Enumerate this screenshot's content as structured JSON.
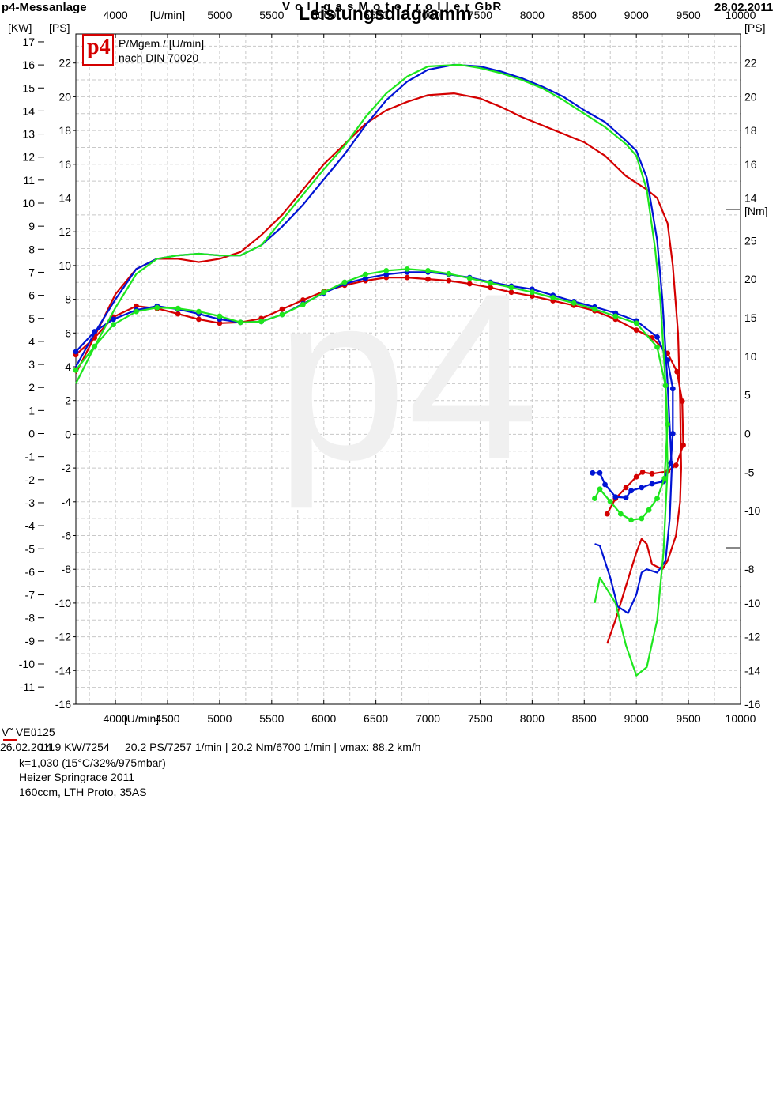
{
  "header": {
    "left": "p4-Messanlage",
    "center_top": "V o l l g a s  M o t o r r o l l e r  GbR",
    "title": "Leistungsdiagramm",
    "date": "28.02.2011"
  },
  "legend_box": {
    "logo": "p4",
    "line1": "P/Mgem / [U/min]",
    "line2": "nach DIN 70020"
  },
  "watermark": "p4",
  "run_label": {
    "vehicle": "V˜  VEü125",
    "date": "26.02.2011",
    "overlap": "14.9 KW/7254",
    "summary": "20.2 PS/7257 1/min  |  20.2 Nm/6700 1/min  |  vmax: 88.2 km/h",
    "line2": "k=1,030 (15°C/32%/975mbar)",
    "line3": "Heizer Springrace 2011",
    "line4": "160ccm, LTH Proto, 35AS"
  },
  "colors": {
    "red": "#d40000",
    "blue": "#0014d4",
    "green": "#1ee61e",
    "grid": "#c8c8c8"
  },
  "chart_data": {
    "type": "line",
    "x_unit": "[U/min]",
    "x_ticks": [
      4000,
      4500,
      5000,
      5500,
      6000,
      6500,
      7000,
      7500,
      8000,
      8500,
      9000,
      9500,
      10000
    ],
    "x_tick_labels_top": [
      "4000",
      "[U/min]",
      "5000",
      "5500",
      "6000",
      "6500",
      "7000",
      "7500",
      "8000",
      "8500",
      "9000",
      "9500",
      "10000"
    ],
    "x_tick_labels_bottom": [
      "4000",
      "[U/min]",
      "4500",
      "5000",
      "5500",
      "6000",
      "6500",
      "7000",
      "7500",
      "8000",
      "8500",
      "9000",
      "9500",
      "10000"
    ],
    "xlim": [
      3620,
      10000
    ],
    "kw_axis": {
      "label": "[KW]",
      "ticks": [
        -11,
        -10,
        -9,
        -8,
        -7,
        -6,
        -5,
        -4,
        -3,
        -2,
        -1,
        0,
        1,
        2,
        3,
        4,
        5,
        6,
        7,
        8,
        9,
        10,
        11,
        12,
        13,
        14,
        15,
        16,
        17
      ]
    },
    "ps_axis": {
      "label": "[PS]",
      "ylim": [
        -16,
        24
      ],
      "ticks": [
        -16,
        -14,
        -12,
        -10,
        -8,
        -6,
        -4,
        -2,
        0,
        2,
        4,
        6,
        8,
        10,
        12,
        14,
        16,
        18,
        20,
        22
      ]
    },
    "nm_axis": {
      "label": "[Nm]",
      "ticks": [
        -10,
        -5,
        0,
        5,
        10,
        15,
        20,
        25
      ]
    },
    "series": [
      {
        "color": "red",
        "power_ps": [
          [
            3620,
            3.6
          ],
          [
            3800,
            5.8
          ],
          [
            4000,
            8.3
          ],
          [
            4200,
            9.8
          ],
          [
            4400,
            10.4
          ],
          [
            4600,
            10.4
          ],
          [
            4800,
            10.2
          ],
          [
            5000,
            10.4
          ],
          [
            5200,
            10.8
          ],
          [
            5400,
            11.8
          ],
          [
            5600,
            13
          ],
          [
            5800,
            14.5
          ],
          [
            6000,
            16
          ],
          [
            6200,
            17.2
          ],
          [
            6400,
            18.4
          ],
          [
            6600,
            19.2
          ],
          [
            6800,
            19.7
          ],
          [
            7000,
            20.1
          ],
          [
            7250,
            20.2
          ],
          [
            7500,
            19.9
          ],
          [
            7700,
            19.4
          ],
          [
            7900,
            18.8
          ],
          [
            8100,
            18.3
          ],
          [
            8300,
            17.8
          ],
          [
            8500,
            17.3
          ],
          [
            8700,
            16.5
          ],
          [
            8900,
            15.3
          ],
          [
            9000,
            14.9
          ],
          [
            9100,
            14.5
          ],
          [
            9200,
            14
          ],
          [
            9300,
            12.5
          ],
          [
            9350,
            10
          ],
          [
            9400,
            6
          ],
          [
            9420,
            2
          ],
          [
            9430,
            -2
          ],
          [
            9420,
            -4
          ],
          [
            9380,
            -6
          ],
          [
            9300,
            -7.5
          ],
          [
            9250,
            -8
          ],
          [
            9150,
            -7.7
          ],
          [
            9100,
            -6.5
          ],
          [
            9050,
            -6.2
          ],
          [
            9000,
            -7
          ],
          [
            8900,
            -9
          ],
          [
            8800,
            -11
          ],
          [
            8720,
            -12.4
          ]
        ],
        "torque_nm": [
          [
            3620,
            10.2
          ],
          [
            3800,
            12.4
          ],
          [
            3980,
            15.1
          ],
          [
            4200,
            16.5
          ],
          [
            4400,
            16.2
          ],
          [
            4600,
            15.5
          ],
          [
            4800,
            14.8
          ],
          [
            5000,
            14.3
          ],
          [
            5200,
            14.4
          ],
          [
            5400,
            14.9
          ],
          [
            5600,
            16.1
          ],
          [
            5800,
            17.3
          ],
          [
            6000,
            18.4
          ],
          [
            6200,
            19.2
          ],
          [
            6400,
            19.8
          ],
          [
            6600,
            20.2
          ],
          [
            6800,
            20.2
          ],
          [
            7000,
            20.0
          ],
          [
            7200,
            19.8
          ],
          [
            7400,
            19.4
          ],
          [
            7600,
            18.9
          ],
          [
            7800,
            18.3
          ],
          [
            8000,
            17.8
          ],
          [
            8200,
            17.2
          ],
          [
            8400,
            16.6
          ],
          [
            8600,
            15.9
          ],
          [
            8800,
            14.8
          ],
          [
            9000,
            13.4
          ],
          [
            9150,
            12.4
          ],
          [
            9300,
            10.4
          ],
          [
            9390,
            8.0
          ],
          [
            9440,
            4.2
          ],
          [
            9450,
            -1.5
          ],
          [
            9380,
            -4.1
          ],
          [
            9300,
            -4.9
          ],
          [
            9150,
            -5.2
          ],
          [
            9060,
            -5.0
          ],
          [
            9000,
            -5.6
          ],
          [
            8900,
            -7.0
          ],
          [
            8800,
            -8.4
          ],
          [
            8720,
            -10.4
          ]
        ]
      },
      {
        "color": "blue",
        "power_ps": [
          [
            3620,
            4
          ],
          [
            3800,
            6
          ],
          [
            4000,
            8
          ],
          [
            4200,
            9.8
          ],
          [
            4400,
            10.4
          ],
          [
            4600,
            10.6
          ],
          [
            4800,
            10.7
          ],
          [
            5000,
            10.6
          ],
          [
            5200,
            10.6
          ],
          [
            5400,
            11.2
          ],
          [
            5600,
            12.3
          ],
          [
            5800,
            13.6
          ],
          [
            6000,
            15.1
          ],
          [
            6200,
            16.6
          ],
          [
            6400,
            18.3
          ],
          [
            6600,
            19.8
          ],
          [
            6800,
            20.9
          ],
          [
            7000,
            21.6
          ],
          [
            7250,
            21.9
          ],
          [
            7500,
            21.8
          ],
          [
            7700,
            21.5
          ],
          [
            7900,
            21.1
          ],
          [
            8100,
            20.6
          ],
          [
            8300,
            20
          ],
          [
            8500,
            19.2
          ],
          [
            8700,
            18.5
          ],
          [
            8900,
            17.4
          ],
          [
            9000,
            16.8
          ],
          [
            9100,
            15.2
          ],
          [
            9200,
            11.5
          ],
          [
            9250,
            8
          ],
          [
            9300,
            3
          ],
          [
            9340,
            -2
          ],
          [
            9320,
            -5
          ],
          [
            9280,
            -7.5
          ],
          [
            9200,
            -8.2
          ],
          [
            9100,
            -8
          ],
          [
            9050,
            -8.2
          ],
          [
            9000,
            -9.5
          ],
          [
            8920,
            -10.6
          ],
          [
            8820,
            -10.2
          ],
          [
            8750,
            -8.5
          ],
          [
            8650,
            -6.6
          ],
          [
            8600,
            -6.5
          ]
        ],
        "torque_nm": [
          [
            3620,
            10.6
          ],
          [
            3800,
            13.2
          ],
          [
            3980,
            14.8
          ],
          [
            4200,
            16.0
          ],
          [
            4400,
            16.5
          ],
          [
            4600,
            16.1
          ],
          [
            4800,
            15.5
          ],
          [
            5000,
            14.8
          ],
          [
            5200,
            14.4
          ],
          [
            5400,
            14.5
          ],
          [
            5600,
            15.4
          ],
          [
            5800,
            16.8
          ],
          [
            6000,
            18.2
          ],
          [
            6200,
            19.4
          ],
          [
            6400,
            20.1
          ],
          [
            6600,
            20.6
          ],
          [
            6800,
            20.9
          ],
          [
            7000,
            20.9
          ],
          [
            7200,
            20.6
          ],
          [
            7400,
            20.2
          ],
          [
            7600,
            19.6
          ],
          [
            7800,
            19.1
          ],
          [
            8000,
            18.7
          ],
          [
            8200,
            17.9
          ],
          [
            8400,
            17.1
          ],
          [
            8600,
            16.4
          ],
          [
            8800,
            15.6
          ],
          [
            9000,
            14.6
          ],
          [
            9200,
            12.5
          ],
          [
            9300,
            9.5
          ],
          [
            9350,
            5.8
          ],
          [
            9350,
            0
          ],
          [
            9330,
            -3.8
          ],
          [
            9260,
            -6.2
          ],
          [
            9150,
            -6.5
          ],
          [
            9050,
            -7.0
          ],
          [
            8950,
            -7.4
          ],
          [
            8900,
            -8.3
          ],
          [
            8800,
            -8.2
          ],
          [
            8700,
            -6.6
          ],
          [
            8650,
            -5.1
          ],
          [
            8580,
            -5.1
          ]
        ]
      },
      {
        "color": "green",
        "power_ps": [
          [
            3620,
            3
          ],
          [
            3800,
            5.2
          ],
          [
            4000,
            7.5
          ],
          [
            4200,
            9.5
          ],
          [
            4400,
            10.4
          ],
          [
            4600,
            10.6
          ],
          [
            4800,
            10.7
          ],
          [
            5000,
            10.6
          ],
          [
            5200,
            10.6
          ],
          [
            5400,
            11.2
          ],
          [
            5600,
            12.7
          ],
          [
            5800,
            14.2
          ],
          [
            6000,
            15.7
          ],
          [
            6200,
            17.1
          ],
          [
            6400,
            18.8
          ],
          [
            6600,
            20.2
          ],
          [
            6800,
            21.2
          ],
          [
            7000,
            21.8
          ],
          [
            7300,
            21.9
          ],
          [
            7500,
            21.7
          ],
          [
            7700,
            21.4
          ],
          [
            7900,
            21
          ],
          [
            8100,
            20.5
          ],
          [
            8300,
            19.8
          ],
          [
            8500,
            19
          ],
          [
            8700,
            18.2
          ],
          [
            8900,
            17.2
          ],
          [
            9000,
            16.5
          ],
          [
            9100,
            14.5
          ],
          [
            9180,
            11
          ],
          [
            9230,
            8
          ],
          [
            9280,
            3
          ],
          [
            9300,
            -2
          ],
          [
            9260,
            -7
          ],
          [
            9200,
            -11
          ],
          [
            9100,
            -13.8
          ],
          [
            9000,
            -14.3
          ],
          [
            8900,
            -12.5
          ],
          [
            8800,
            -10
          ],
          [
            8700,
            -9
          ],
          [
            8650,
            -8.5
          ],
          [
            8600,
            -10
          ]
        ],
        "torque_nm": [
          [
            3620,
            8.2
          ],
          [
            3800,
            11.3
          ],
          [
            3980,
            14.1
          ],
          [
            4200,
            15.8
          ],
          [
            4400,
            16.3
          ],
          [
            4600,
            16.2
          ],
          [
            4800,
            15.8
          ],
          [
            5000,
            15.2
          ],
          [
            5200,
            14.4
          ],
          [
            5400,
            14.5
          ],
          [
            5600,
            15.4
          ],
          [
            5800,
            16.7
          ],
          [
            6000,
            18.3
          ],
          [
            6200,
            19.6
          ],
          [
            6400,
            20.6
          ],
          [
            6600,
            21.1
          ],
          [
            6800,
            21.3
          ],
          [
            7000,
            21.1
          ],
          [
            7200,
            20.7
          ],
          [
            7400,
            20.1
          ],
          [
            7600,
            19.5
          ],
          [
            7800,
            18.9
          ],
          [
            8000,
            18.3
          ],
          [
            8200,
            17.6
          ],
          [
            8400,
            16.9
          ],
          [
            8600,
            16.1
          ],
          [
            8800,
            15.2
          ],
          [
            9000,
            14.3
          ],
          [
            9200,
            11.2
          ],
          [
            9280,
            6.2
          ],
          [
            9300,
            1.2
          ],
          [
            9270,
            -5.8
          ],
          [
            9200,
            -8.4
          ],
          [
            9120,
            -9.9
          ],
          [
            9050,
            -11.0
          ],
          [
            8950,
            -11.2
          ],
          [
            8850,
            -10.4
          ],
          [
            8750,
            -8.8
          ],
          [
            8650,
            -7.2
          ],
          [
            8600,
            -8.4
          ]
        ]
      }
    ]
  }
}
